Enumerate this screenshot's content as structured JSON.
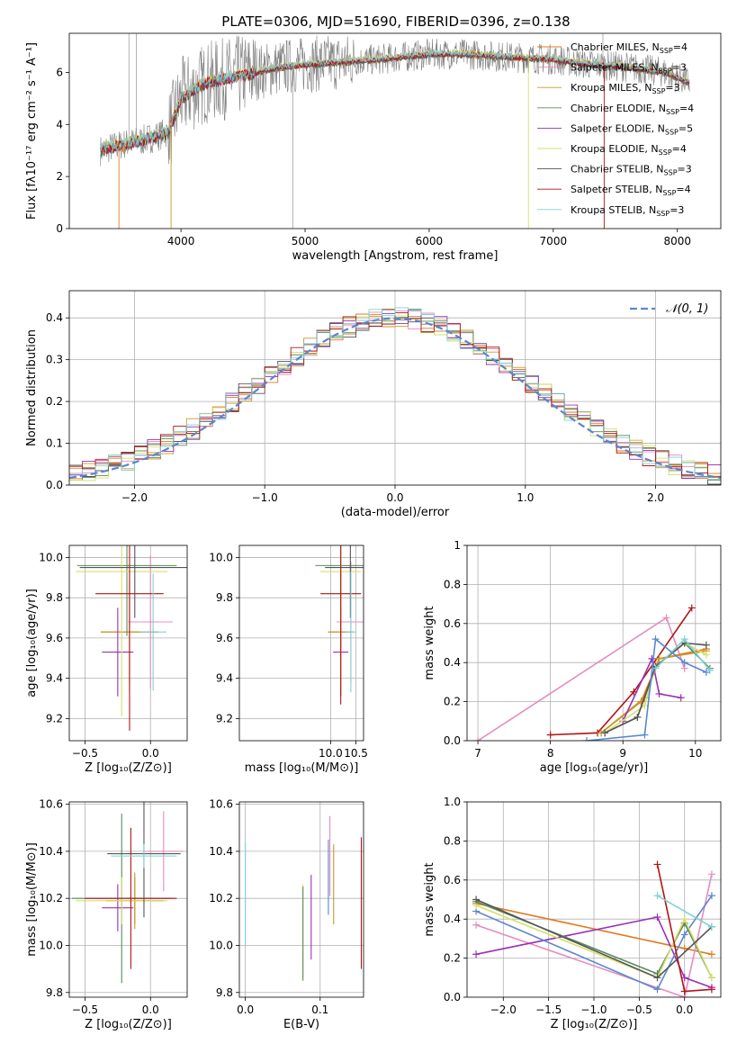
{
  "title": "PLATE=0306, MJD=51690, FIBERID=0396, z=0.138",
  "colors": {
    "Chabrier MILES": "#e07a22",
    "Salpeter MILES": "#e58cbd",
    "Kroupa MILES": "#c59a2a",
    "Chabrier ELODIE": "#5c8a5c",
    "Salpeter ELODIE": "#9b30b5",
    "Kroupa ELODIE": "#d6e06a",
    "Chabrier STELIB": "#555555",
    "Salpeter STELIB": "#b01515",
    "Kroupa STELIB": "#7fd0d6",
    "gauss": "#5b86cf"
  },
  "chart_data": [
    {
      "type": "line",
      "panel": "spectrum",
      "title": "PLATE=0306, MJD=51690, FIBERID=0396, z=0.138",
      "xlabel": "wavelength [Angstrom, rest frame]",
      "ylabel": "Flux [fλ10⁻¹⁷ erg cm⁻² s⁻¹ A⁻¹]",
      "xlim": [
        3100,
        8350
      ],
      "ylim": [
        0,
        7.5
      ],
      "xticks": [
        4000,
        5000,
        6000,
        7000,
        8000
      ],
      "yticks": [
        0,
        2,
        4,
        6
      ],
      "legend_position": "top-right",
      "legend": [
        {
          "name": "Chabrier MILES",
          "ssp": "4",
          "color": "#e07a22"
        },
        {
          "name": "Salpeter MILES",
          "ssp": "3",
          "color": "#e58cbd"
        },
        {
          "name": "Kroupa MILES",
          "ssp": "3",
          "color": "#c59a2a"
        },
        {
          "name": "Chabrier ELODIE",
          "ssp": "4",
          "color": "#5c8a5c"
        },
        {
          "name": "Salpeter ELODIE",
          "ssp": "5",
          "color": "#9b30b5"
        },
        {
          "name": "Kroupa ELODIE",
          "ssp": "4",
          "color": "#d6e06a"
        },
        {
          "name": "Chabrier STELIB",
          "ssp": "3",
          "color": "#555555"
        },
        {
          "name": "Salpeter STELIB",
          "ssp": "4",
          "color": "#b01515"
        },
        {
          "name": "Kroupa STELIB",
          "ssp": "3",
          "color": "#7fd0d6"
        }
      ],
      "continuum": {
        "x": [
          3350,
          3500,
          3700,
          3900,
          4000,
          4200,
          4500,
          4800,
          5000,
          5300,
          5600,
          6000,
          6300,
          6600,
          7000,
          7300,
          7600,
          7900,
          8100
        ],
        "y": [
          3.0,
          3.2,
          3.4,
          3.7,
          5.0,
          5.6,
          5.9,
          6.2,
          6.3,
          6.4,
          6.5,
          6.7,
          6.7,
          6.6,
          6.5,
          6.3,
          6.2,
          6.0,
          5.6
        ]
      }
    },
    {
      "type": "line",
      "panel": "residuals",
      "xlabel": "(data-model)/error",
      "ylabel": "Normed distribution",
      "xlim": [
        -2.5,
        2.5
      ],
      "ylim": [
        0,
        0.465
      ],
      "xticks": [
        -2,
        -1,
        0,
        1,
        2
      ],
      "yticks": [
        0.0,
        0.1,
        0.2,
        0.3,
        0.4
      ],
      "grid": true,
      "legend_position": "top-right",
      "gauss_label": "𝒩(0, 1)"
    },
    {
      "type": "scatter",
      "panel": "age-vs-Z",
      "xlabel": "Z [log₁₀(Z/Z⊙)]",
      "ylabel": "age  [log₁₀(age/yr)]",
      "xlim": [
        -0.62,
        0.28
      ],
      "ylim": [
        9.09,
        10.06
      ],
      "xticks": [
        -0.5,
        0.0
      ],
      "yticks": [
        9.2,
        9.4,
        9.6,
        9.8,
        10.0
      ],
      "grid": true,
      "points": [
        {
          "model": "Chabrier MILES",
          "x": -0.16,
          "y": 9.63,
          "xerr": 0.22,
          "yerr": 0.25
        },
        {
          "model": "Salpeter MILES",
          "x": 0.0,
          "y": 9.68,
          "xerr": 0.17,
          "yerr": 0.33
        },
        {
          "model": "Kroupa MILES",
          "x": -0.16,
          "y": 9.63,
          "xerr": 0.22,
          "yerr": 0.3
        },
        {
          "model": "Chabrier ELODIE",
          "x": -0.18,
          "y": 9.96,
          "xerr": 0.38,
          "yerr": 0.35
        },
        {
          "model": "Salpeter ELODIE",
          "x": -0.25,
          "y": 9.53,
          "xerr": 0.12,
          "yerr": 0.22
        },
        {
          "model": "Kroupa ELODIE",
          "x": -0.22,
          "y": 9.93,
          "xerr": 0.35,
          "yerr": 0.72
        },
        {
          "model": "Chabrier STELIB",
          "x": -0.12,
          "y": 9.95,
          "xerr": 0.42,
          "yerr": 0.25
        },
        {
          "model": "Salpeter STELIB",
          "x": -0.16,
          "y": 9.82,
          "xerr": 0.26,
          "yerr": 0.68
        },
        {
          "model": "Kroupa STELIB",
          "x": 0.02,
          "y": 9.63,
          "xerr": 0.1,
          "yerr": 0.29
        }
      ]
    },
    {
      "type": "scatter",
      "panel": "age-vs-mass",
      "xlabel": "mass [log₁₀(M/M⊙)]",
      "ylabel": "",
      "xlim": [
        8.2,
        10.65
      ],
      "ylim": [
        9.09,
        10.06
      ],
      "xticks": [
        8,
        10.0,
        10.5
      ],
      "yticks": [
        9.2,
        9.4,
        9.6,
        9.8,
        10.0
      ],
      "grid": true,
      "points": [
        {
          "model": "Chabrier MILES",
          "x": 10.2,
          "y": 9.63,
          "xerr": 0.25,
          "yerr": 0.3
        },
        {
          "model": "Salpeter MILES",
          "x": 10.4,
          "y": 9.68,
          "xerr": 0.28,
          "yerr": 0.3
        },
        {
          "model": "Kroupa MILES",
          "x": 10.2,
          "y": 9.63,
          "xerr": 0.25,
          "yerr": 0.3
        },
        {
          "model": "Chabrier ELODIE",
          "x": 10.2,
          "y": 9.96,
          "xerr": 0.5,
          "yerr": 0.4
        },
        {
          "model": "Salpeter ELODIE",
          "x": 10.2,
          "y": 9.53,
          "xerr": 0.15,
          "yerr": 0.22
        },
        {
          "model": "Kroupa ELODIE",
          "x": 10.2,
          "y": 9.93,
          "xerr": 0.4,
          "yerr": 0.6
        },
        {
          "model": "Chabrier STELIB",
          "x": 10.39,
          "y": 9.95,
          "xerr": 0.5,
          "yerr": 0.25
        },
        {
          "model": "Salpeter STELIB",
          "x": 10.2,
          "y": 9.82,
          "xerr": 0.4,
          "yerr": 0.55
        },
        {
          "model": "Kroupa STELIB",
          "x": 10.4,
          "y": 9.63,
          "xerr": 0.1,
          "yerr": 0.3
        }
      ]
    },
    {
      "type": "line",
      "panel": "weight-vs-age",
      "xlabel": "age  [log₁₀(age/yr)]",
      "ylabel": "mass weight",
      "xlim": [
        6.85,
        10.35
      ],
      "ylim": [
        0,
        1.0
      ],
      "xticks": [
        7,
        8,
        9,
        10
      ],
      "yticks": [
        0.0,
        0.2,
        0.4,
        0.6,
        0.8,
        1.0
      ],
      "grid": true,
      "series": [
        {
          "model": "Salpeter MILES",
          "x": [
            7.0,
            9.6,
            9.85
          ],
          "y": [
            0.0,
            0.63,
            0.37
          ]
        },
        {
          "model": "Salpeter STELIB",
          "x": [
            8.0,
            8.65,
            9.15,
            9.95
          ],
          "y": [
            0.03,
            0.04,
            0.25,
            0.68
          ]
        },
        {
          "model": "Chabrier MILES",
          "x": [
            8.7,
            9.25,
            9.5,
            10.15
          ],
          "y": [
            0.04,
            0.2,
            0.42,
            0.47
          ]
        },
        {
          "model": "Kroupa MILES",
          "x": [
            8.7,
            9.3,
            9.5,
            10.15
          ],
          "y": [
            0.04,
            0.22,
            0.42,
            0.46
          ]
        },
        {
          "model": "Chabrier ELODIE",
          "x": [
            8.75,
            9.2,
            9.45,
            9.85,
            10.2
          ],
          "y": [
            0.04,
            0.12,
            0.38,
            0.5,
            0.37
          ]
        },
        {
          "model": "Salpeter ELODIE",
          "x": [
            9.0,
            9.4,
            9.5,
            9.8
          ],
          "y": [
            0.1,
            0.42,
            0.24,
            0.22
          ]
        },
        {
          "model": "Kroupa ELODIE",
          "x": [
            8.75,
            9.3,
            9.45,
            9.85,
            10.15
          ],
          "y": [
            0.04,
            0.18,
            0.38,
            0.5,
            0.44
          ]
        },
        {
          "model": "Chabrier STELIB",
          "x": [
            8.75,
            9.2,
            9.45,
            9.85,
            10.15
          ],
          "y": [
            0.04,
            0.12,
            0.38,
            0.5,
            0.49
          ]
        },
        {
          "model": "Kroupa STELIB",
          "x": [
            9.45,
            9.85,
            10.2
          ],
          "y": [
            0.37,
            0.52,
            0.36
          ]
        },
        {
          "model": "gauss",
          "x": [
            8.5,
            9.3,
            9.45,
            9.85,
            10.15
          ],
          "y": [
            0.0,
            0.03,
            0.52,
            0.4,
            0.35
          ]
        }
      ]
    },
    {
      "type": "scatter",
      "panel": "mass-vs-Z",
      "xlabel": "Z [log₁₀(Z/Z⊙)]",
      "ylabel": "mass [log₁₀(M/M⊙)]",
      "xlim": [
        -0.62,
        0.28
      ],
      "ylim": [
        9.78,
        10.61
      ],
      "xticks": [
        -0.5,
        0.0
      ],
      "yticks": [
        9.8,
        10.0,
        10.2,
        10.4,
        10.6
      ],
      "grid": true,
      "points": [
        {
          "model": "Chabrier MILES",
          "x": -0.12,
          "y": 10.19,
          "xerr": 0.22,
          "yerr": 0.1
        },
        {
          "model": "Salpeter MILES",
          "x": 0.1,
          "y": 10.4,
          "xerr": 0.15,
          "yerr": 0.17
        },
        {
          "model": "Kroupa MILES",
          "x": -0.12,
          "y": 10.19,
          "xerr": 0.22,
          "yerr": 0.12
        },
        {
          "model": "Chabrier ELODIE",
          "x": -0.22,
          "y": 10.2,
          "xerr": 0.38,
          "yerr": 0.36
        },
        {
          "model": "Salpeter ELODIE",
          "x": -0.25,
          "y": 10.16,
          "xerr": 0.12,
          "yerr": 0.1
        },
        {
          "model": "Kroupa ELODIE",
          "x": -0.22,
          "y": 10.19,
          "xerr": 0.35,
          "yerr": 0.1
        },
        {
          "model": "Chabrier STELIB",
          "x": -0.05,
          "y": 10.39,
          "xerr": 0.28,
          "yerr": 0.27
        },
        {
          "model": "Salpeter STELIB",
          "x": -0.15,
          "y": 10.2,
          "xerr": 0.35,
          "yerr": 0.3
        },
        {
          "model": "Kroupa STELIB",
          "x": -0.05,
          "y": 10.38,
          "xerr": 0.25,
          "yerr": 0.05
        }
      ]
    },
    {
      "type": "scatter",
      "panel": "mass-vs-EBV",
      "xlabel": "E(B-V)",
      "ylabel": "",
      "xlim": [
        -0.008,
        0.158
      ],
      "ylim": [
        9.78,
        10.61
      ],
      "xticks": [
        0.0,
        0.1
      ],
      "yticks": [
        9.8,
        10.0,
        10.2,
        10.4,
        10.6
      ],
      "grid": true,
      "points": [
        {
          "model": "Kroupa STELIB",
          "x": 0.0,
          "y": 10.22,
          "yerr": 0.22
        },
        {
          "model": "Kroupa ELODIE",
          "x": 0.077,
          "y": 10.06,
          "yerr": 0.2
        },
        {
          "model": "Chabrier ELODIE",
          "x": 0.077,
          "y": 10.05,
          "yerr": 0.2
        },
        {
          "model": "Salpeter ELODIE",
          "x": 0.088,
          "y": 10.12,
          "yerr": 0.18
        },
        {
          "model": "Salpeter MILES",
          "x": 0.113,
          "y": 10.38,
          "yerr": 0.17
        },
        {
          "model": "gauss",
          "x": 0.111,
          "y": 10.29,
          "yerr": 0.16
        },
        {
          "model": "Kroupa MILES",
          "x": 0.118,
          "y": 10.26,
          "yerr": 0.17
        },
        {
          "model": "Salpeter STELIB",
          "x": 0.155,
          "y": 10.18,
          "yerr": 0.28
        }
      ]
    },
    {
      "type": "line",
      "panel": "weight-vs-Z",
      "xlabel": "Z [log₁₀(Z/Z⊙)]",
      "ylabel": "mass weight",
      "xlim": [
        -2.4,
        0.4
      ],
      "ylim": [
        0,
        1.0
      ],
      "xticks": [
        -2.0,
        -1.5,
        -1.0,
        -0.5,
        0.0
      ],
      "yticks": [
        0.0,
        0.2,
        0.4,
        0.6,
        0.8,
        1.0
      ],
      "grid": true,
      "series": [
        {
          "model": "Chabrier MILES",
          "x": [
            -2.3,
            0.0,
            0.3
          ],
          "y": [
            0.48,
            0.25,
            0.22
          ]
        },
        {
          "model": "Salpeter MILES",
          "x": [
            -2.3,
            0.0,
            0.3
          ],
          "y": [
            0.37,
            0.0,
            0.63
          ]
        },
        {
          "model": "Salpeter ELODIE",
          "x": [
            -2.3,
            -0.3,
            0.0,
            0.3
          ],
          "y": [
            0.22,
            0.41,
            0.1,
            0.05
          ]
        },
        {
          "model": "gauss",
          "x": [
            -2.3,
            -0.3,
            0.0,
            0.3
          ],
          "y": [
            0.44,
            0.04,
            0.32,
            0.52
          ]
        },
        {
          "model": "Chabrier ELODIE",
          "x": [
            -2.3,
            -0.3,
            0.0,
            0.3
          ],
          "y": [
            0.49,
            0.12,
            0.38,
            0.1
          ]
        },
        {
          "model": "Kroupa ELODIE",
          "x": [
            -2.3,
            -0.3,
            0.0,
            0.3
          ],
          "y": [
            0.47,
            0.1,
            0.4,
            0.1
          ]
        },
        {
          "model": "Salpeter STELIB",
          "x": [
            -0.3,
            0.0,
            0.3
          ],
          "y": [
            0.68,
            0.03,
            0.04
          ]
        },
        {
          "model": "Chabrier STELIB",
          "x": [
            -2.3,
            -0.3,
            0.3
          ],
          "y": [
            0.5,
            0.1,
            0.36
          ]
        },
        {
          "model": "Kroupa STELIB",
          "x": [
            -0.3,
            0.3
          ],
          "y": [
            0.52,
            0.36
          ]
        }
      ]
    }
  ]
}
